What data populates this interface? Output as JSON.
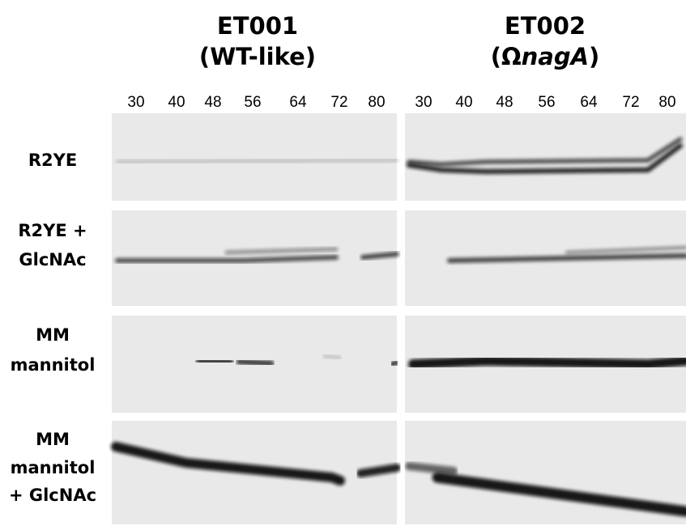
{
  "columns": [
    {
      "title": "ET001",
      "subtitle": {
        "prefix": "(",
        "italic": "",
        "plain": "WT-like",
        "suffix": ")"
      },
      "lanes": [
        30,
        40,
        48,
        56,
        64,
        72,
        80
      ]
    },
    {
      "title": "ET002",
      "subtitle": {
        "prefix": "(Ω",
        "italic": "nagA",
        "plain": "",
        "suffix": ")"
      },
      "lanes": [
        30,
        40,
        48,
        56,
        64,
        72,
        80
      ]
    }
  ],
  "rows": [
    {
      "lines": [
        "R2YE"
      ]
    },
    {
      "lines": [
        "R2YE +",
        "GlcNAc"
      ]
    },
    {
      "lines": [
        "MM",
        "mannitol"
      ]
    },
    {
      "lines": [
        "MM",
        "mannitol",
        "+ GlcNAc"
      ]
    }
  ]
}
